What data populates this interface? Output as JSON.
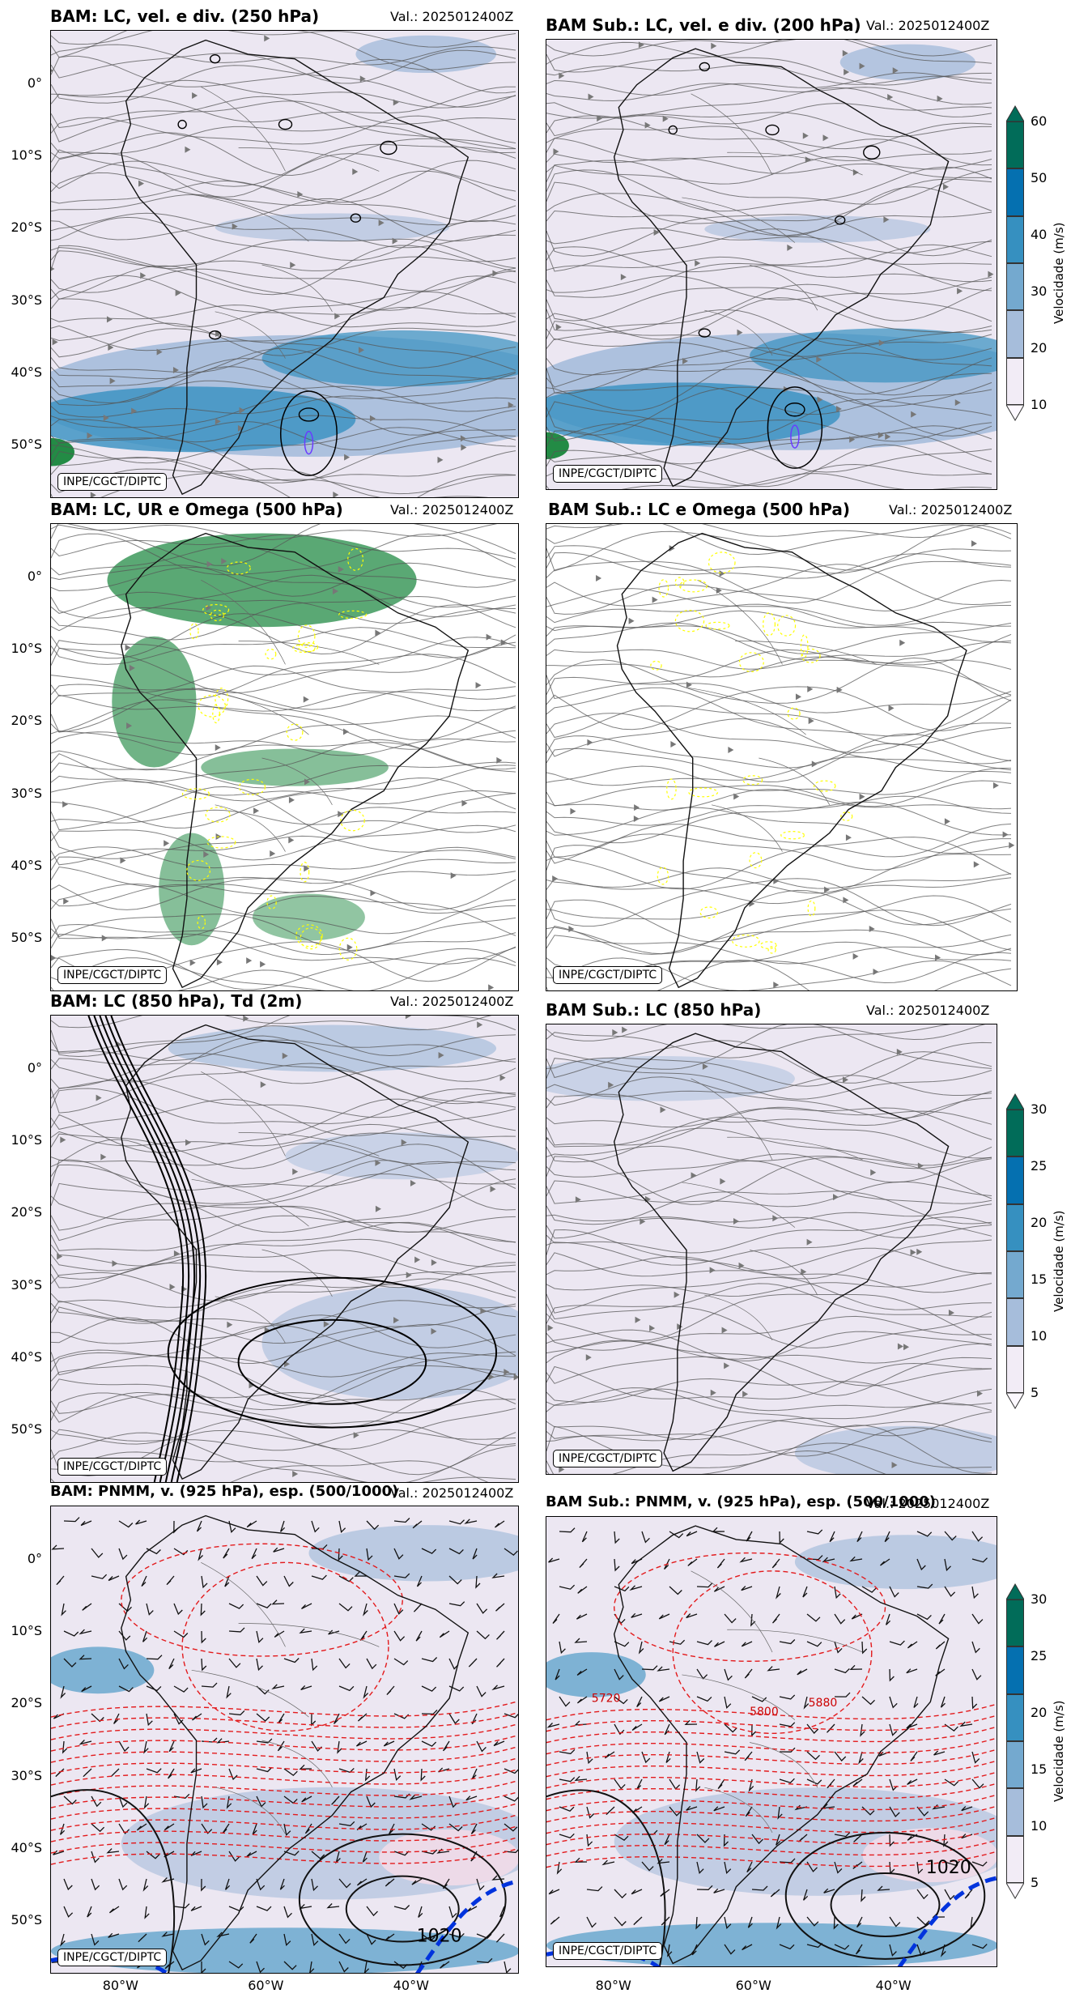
{
  "panels": [
    {
      "title": "BAM: LC, vel. e div. (250 hPa)",
      "valid": "Val.: 2025012400Z",
      "credit": "INPE/CGCT/DIPTC"
    },
    {
      "title": "BAM Sub.: LC, vel. e div. (200 hPa)",
      "valid": "Val.: 2025012400Z",
      "credit": "INPE/CGCT/DIPTC"
    },
    {
      "title": "BAM: LC, UR e Omega (500 hPa)",
      "valid": "Val.: 2025012400Z",
      "credit": "INPE/CGCT/DIPTC"
    },
    {
      "title": "BAM Sub.: LC e Omega (500 hPa)",
      "valid": "Val.: 2025012400Z",
      "credit": "INPE/CGCT/DIPTC"
    },
    {
      "title": "BAM: LC (850 hPa), Td (2m)",
      "valid": "Val.: 2025012400Z",
      "credit": "INPE/CGCT/DIPTC"
    },
    {
      "title": "BAM Sub.: LC (850 hPa)",
      "valid": "Val.: 2025012400Z",
      "credit": "INPE/CGCT/DIPTC"
    },
    {
      "title": "BAM: PNMM, v. (925 hPa), esp. (500/1000)",
      "valid": "Val.: 2025012400Z",
      "credit": "INPE/CGCT/DIPTC"
    },
    {
      "title": "BAM Sub.: PNMM, v. (925 hPa), esp. (500/1000)",
      "valid": "Val.: 2025012400Z",
      "credit": "INPE/CGCT/DIPTC"
    }
  ],
  "lat_labels": [
    "0°",
    "10°S",
    "20°S",
    "30°S",
    "40°S",
    "50°S"
  ],
  "lon_labels": [
    "80°W",
    "60°W",
    "40°W"
  ],
  "colorbars": [
    {
      "title": "Velocidade (m/s)",
      "ticks": [
        "10",
        "20",
        "30",
        "40",
        "50",
        "60"
      ],
      "colors": [
        "#ece7f2",
        "#a6bddb",
        "#74a9cf",
        "#3690c0",
        "#0570b0",
        "#016c59"
      ]
    },
    {
      "title": "Velocidade (m/s)",
      "ticks": [
        "5",
        "10",
        "15",
        "20",
        "25",
        "30"
      ],
      "colors": [
        "#ece7f2",
        "#a6bddb",
        "#74a9cf",
        "#3690c0",
        "#0570b0",
        "#016c59"
      ]
    },
    {
      "title": "Velocidade (m/s)",
      "ticks": [
        "5",
        "10",
        "15",
        "20",
        "25",
        "30"
      ],
      "colors": [
        "#ece7f2",
        "#a6bddb",
        "#74a9cf",
        "#3690c0",
        "#0570b0",
        "#016c59"
      ]
    }
  ],
  "contour_labels": [
    "1020",
    "1020",
    "5720",
    "5800",
    "5880"
  ],
  "colors": {
    "shade_light": "#ece7f2",
    "shade_mid": "#a6bddb",
    "shade_dark": "#3690c0",
    "green": "#238b45",
    "yellow": "#ffff00",
    "geopot": "#e31a1c",
    "isobar": "#000000",
    "streamline": "#555555",
    "highlight_blue": "#0033dd"
  }
}
